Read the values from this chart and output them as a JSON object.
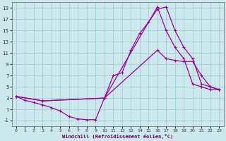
{
  "xlabel": "Windchill (Refroidissement éolien,°C)",
  "background_color": "#cce8ec",
  "grid_color": "#99cccc",
  "line_color": "#990099",
  "xlim": [
    -0.5,
    23.5
  ],
  "ylim": [
    -2,
    20
  ],
  "xticks": [
    0,
    1,
    2,
    3,
    4,
    5,
    6,
    7,
    8,
    9,
    10,
    11,
    12,
    13,
    14,
    15,
    16,
    17,
    18,
    19,
    20,
    21,
    22,
    23
  ],
  "yticks": [
    -1,
    1,
    3,
    5,
    7,
    9,
    11,
    13,
    15,
    17,
    19
  ],
  "series": {
    "line1_x": [
      0,
      1,
      2,
      3,
      4,
      5,
      6,
      7,
      8,
      9,
      10,
      11,
      12,
      13,
      14,
      15,
      16,
      17,
      18,
      19,
      20,
      21,
      22,
      23
    ],
    "line1_y": [
      3.3,
      2.6,
      2.2,
      1.8,
      1.3,
      0.7,
      -0.3,
      -0.7,
      -0.85,
      -0.85,
      3.0,
      7.0,
      7.5,
      11.5,
      14.5,
      16.5,
      18.8,
      19.2,
      15.0,
      12.0,
      10.0,
      5.5,
      5.0,
      4.5
    ],
    "line2_x": [
      0,
      3,
      10,
      16,
      17,
      18,
      19,
      20,
      21,
      22,
      23
    ],
    "line2_y": [
      3.3,
      2.5,
      3.0,
      19.2,
      15.0,
      12.0,
      10.0,
      5.5,
      5.0,
      4.5,
      4.5
    ],
    "line3_x": [
      0,
      3,
      10,
      16,
      17,
      18,
      19,
      20,
      21,
      22,
      23
    ],
    "line3_y": [
      3.3,
      2.5,
      3.0,
      11.5,
      10.0,
      9.7,
      9.5,
      9.5,
      7.0,
      5.0,
      4.5
    ]
  }
}
